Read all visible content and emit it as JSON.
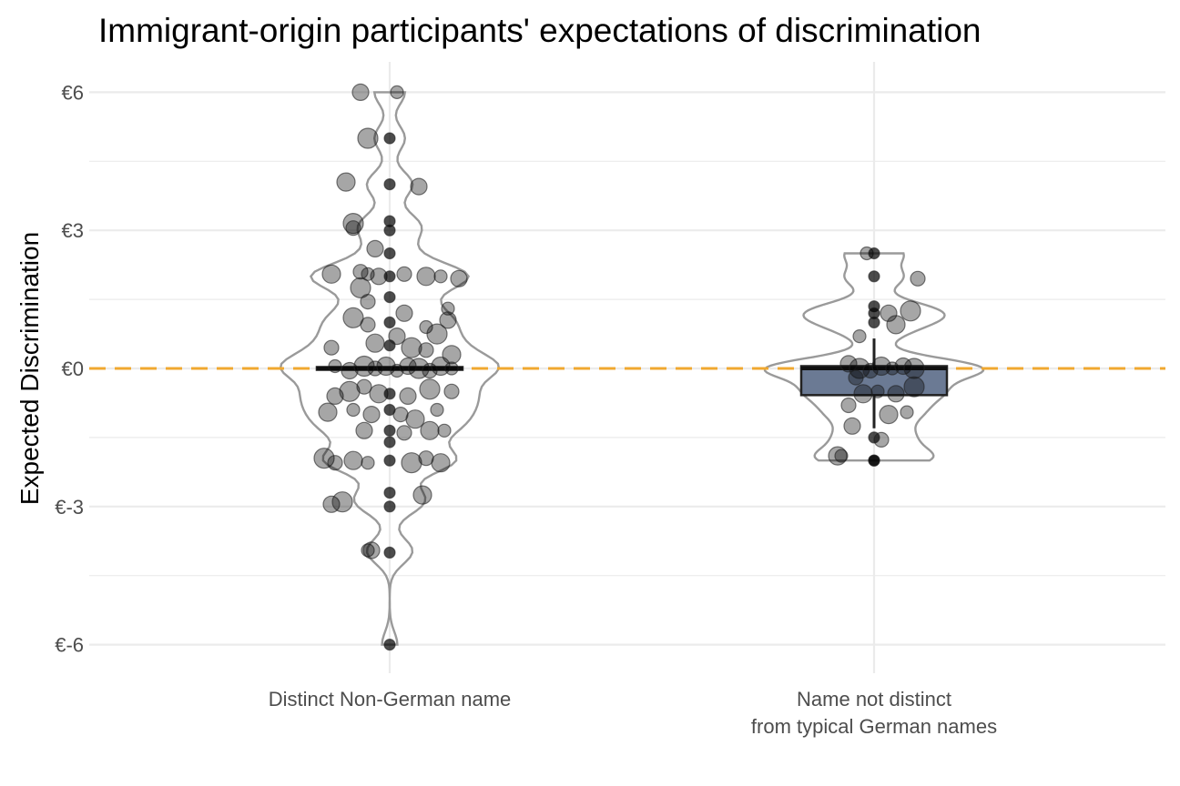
{
  "chart_data": {
    "type": "violin",
    "title": "Immigrant-origin participants' expectations of discrimination",
    "xlabel": "",
    "ylabel": "Expected Discrimination",
    "ylim": [
      -6.6,
      6.6
    ],
    "yticks": [
      -6,
      -3,
      0,
      3,
      6
    ],
    "ytick_labels": [
      "€-6",
      "€-3",
      "€0",
      "€3",
      "€6"
    ],
    "grid": true,
    "reference_line": {
      "y": 0,
      "style": "dashed",
      "color": "#f0a830"
    },
    "categories": [
      {
        "label_lines": [
          "Distinct Non-German name"
        ]
      },
      {
        "label_lines": [
          "Name not distinct",
          "from typical German names"
        ]
      }
    ],
    "groups": [
      {
        "box": {
          "q1": 0,
          "median": 0,
          "q3": 0,
          "whisker_low": 0,
          "whisker_high": 0
        },
        "box_fill": "#000000",
        "violin_range": [
          -6,
          6
        ],
        "points": [
          [
            0.1,
            6
          ],
          [
            -0.4,
            6
          ],
          [
            -0.3,
            5
          ],
          [
            0,
            5
          ],
          [
            -0.6,
            4.05
          ],
          [
            0,
            4
          ],
          [
            0.4,
            3.95
          ],
          [
            -0.5,
            3.15
          ],
          [
            -0.5,
            3.05
          ],
          [
            0,
            3.2
          ],
          [
            0,
            3
          ],
          [
            -0.2,
            2.6
          ],
          [
            0,
            2.5
          ],
          [
            -0.4,
            2.1
          ],
          [
            -0.8,
            2.05
          ],
          [
            -0.3,
            2.05
          ],
          [
            -0.15,
            2.0
          ],
          [
            0,
            2
          ],
          [
            0.2,
            2.05
          ],
          [
            0.5,
            2.0
          ],
          [
            0.7,
            2.0
          ],
          [
            0.95,
            1.95
          ],
          [
            -0.4,
            1.75
          ],
          [
            -0.3,
            1.45
          ],
          [
            0,
            1.55
          ],
          [
            0.8,
            1.3
          ],
          [
            0.2,
            1.2
          ],
          [
            -0.5,
            1.1
          ],
          [
            -0.3,
            0.95
          ],
          [
            0,
            1
          ],
          [
            0.5,
            0.9
          ],
          [
            0.8,
            1.05
          ],
          [
            0.65,
            0.75
          ],
          [
            -0.8,
            0.45
          ],
          [
            -0.2,
            0.55
          ],
          [
            0,
            0.5
          ],
          [
            0.1,
            0.7
          ],
          [
            0.3,
            0.45
          ],
          [
            0.5,
            0.4
          ],
          [
            0.85,
            0.3
          ],
          [
            -0.75,
            0.05
          ],
          [
            -0.55,
            -0.05
          ],
          [
            -0.35,
            0.05
          ],
          [
            -0.2,
            0.0
          ],
          [
            -0.05,
            0.05
          ],
          [
            0.1,
            -0.05
          ],
          [
            0.25,
            0.05
          ],
          [
            0.4,
            0.0
          ],
          [
            0.55,
            -0.05
          ],
          [
            0.7,
            0.05
          ],
          [
            0.85,
            0.0
          ],
          [
            -0.75,
            -0.6
          ],
          [
            -0.55,
            -0.5
          ],
          [
            -0.35,
            -0.4
          ],
          [
            -0.15,
            -0.55
          ],
          [
            0,
            -0.55
          ],
          [
            0.25,
            -0.6
          ],
          [
            0.55,
            -0.45
          ],
          [
            0.85,
            -0.5
          ],
          [
            -0.85,
            -0.95
          ],
          [
            -0.5,
            -0.9
          ],
          [
            -0.25,
            -1.0
          ],
          [
            0,
            -0.9
          ],
          [
            0.15,
            -1.0
          ],
          [
            0.35,
            -1.1
          ],
          [
            0.65,
            -0.9
          ],
          [
            -0.35,
            -1.35
          ],
          [
            0,
            -1.35
          ],
          [
            0.2,
            -1.4
          ],
          [
            0.55,
            -1.35
          ],
          [
            0.75,
            -1.35
          ],
          [
            0,
            -1.6
          ],
          [
            -0.9,
            -1.95
          ],
          [
            -0.75,
            -2.05
          ],
          [
            -0.5,
            -2.0
          ],
          [
            -0.3,
            -2.05
          ],
          [
            0,
            -2
          ],
          [
            0.3,
            -2.05
          ],
          [
            0.5,
            -1.95
          ],
          [
            0.7,
            -2.05
          ],
          [
            0,
            -2.7
          ],
          [
            -0.8,
            -2.95
          ],
          [
            -0.65,
            -2.9
          ],
          [
            0,
            -3
          ],
          [
            0.45,
            -2.75
          ],
          [
            -0.3,
            -3.95
          ],
          [
            -0.25,
            -3.95
          ],
          [
            0,
            -4
          ],
          [
            0,
            -6
          ]
        ],
        "point_sizes": [
          1,
          1,
          1,
          1,
          1,
          1,
          1,
          1,
          1,
          1,
          1,
          1,
          1,
          1,
          1,
          1,
          1,
          1,
          1,
          1,
          1,
          1,
          1,
          1,
          1,
          1,
          1,
          1,
          1,
          1,
          1,
          1,
          1,
          1,
          1,
          1,
          1,
          1,
          1,
          1,
          1,
          1,
          1,
          1,
          1,
          1,
          1,
          1,
          1,
          1,
          1,
          1,
          1,
          1,
          1,
          1,
          1,
          1,
          1,
          1,
          1,
          1,
          1,
          1,
          1,
          1,
          1,
          1,
          1,
          1,
          1,
          1,
          1,
          1,
          1,
          1,
          1,
          1,
          1,
          1,
          1,
          1,
          1,
          1,
          1,
          1,
          1,
          1,
          1
        ]
      },
      {
        "box": {
          "q1": -0.55,
          "median": 0,
          "q3": 0.02,
          "whisker_low": -1.3,
          "whisker_high": 0.65
        },
        "box_fill": "#6b7a94",
        "violin_range": [
          -2,
          2.5
        ],
        "points": [
          [
            -0.1,
            2.5
          ],
          [
            0,
            2.5
          ],
          [
            0,
            2.0
          ],
          [
            0.6,
            1.95
          ],
          [
            0,
            1.35
          ],
          [
            0,
            1.2
          ],
          [
            0.2,
            1.2
          ],
          [
            0.5,
            1.25
          ],
          [
            0,
            1.0
          ],
          [
            0.3,
            0.95
          ],
          [
            -0.2,
            0.7
          ],
          [
            -0.35,
            0.1
          ],
          [
            -0.2,
            0.0
          ],
          [
            -0.05,
            -0.05
          ],
          [
            0.1,
            0.05
          ],
          [
            0.25,
            0.0
          ],
          [
            0.4,
            0.05
          ],
          [
            0.55,
            0.0
          ],
          [
            -0.25,
            -0.2
          ],
          [
            -0.15,
            -0.55
          ],
          [
            0.05,
            -0.5
          ],
          [
            0.3,
            -0.55
          ],
          [
            0.55,
            -0.4
          ],
          [
            -0.35,
            -0.8
          ],
          [
            0.2,
            -1.0
          ],
          [
            0.45,
            -0.95
          ],
          [
            -0.3,
            -1.25
          ],
          [
            0,
            -1.5
          ],
          [
            0.1,
            -1.55
          ],
          [
            -0.5,
            -1.9
          ],
          [
            -0.45,
            -1.9
          ],
          [
            0,
            -2
          ],
          [
            0,
            -2
          ]
        ]
      }
    ]
  },
  "colors": {
    "background": "#ffffff",
    "gridline": "#ebebeb",
    "point": "#000000",
    "violin_outline": "#9a9a9a",
    "reference_line": "#f0a830"
  }
}
